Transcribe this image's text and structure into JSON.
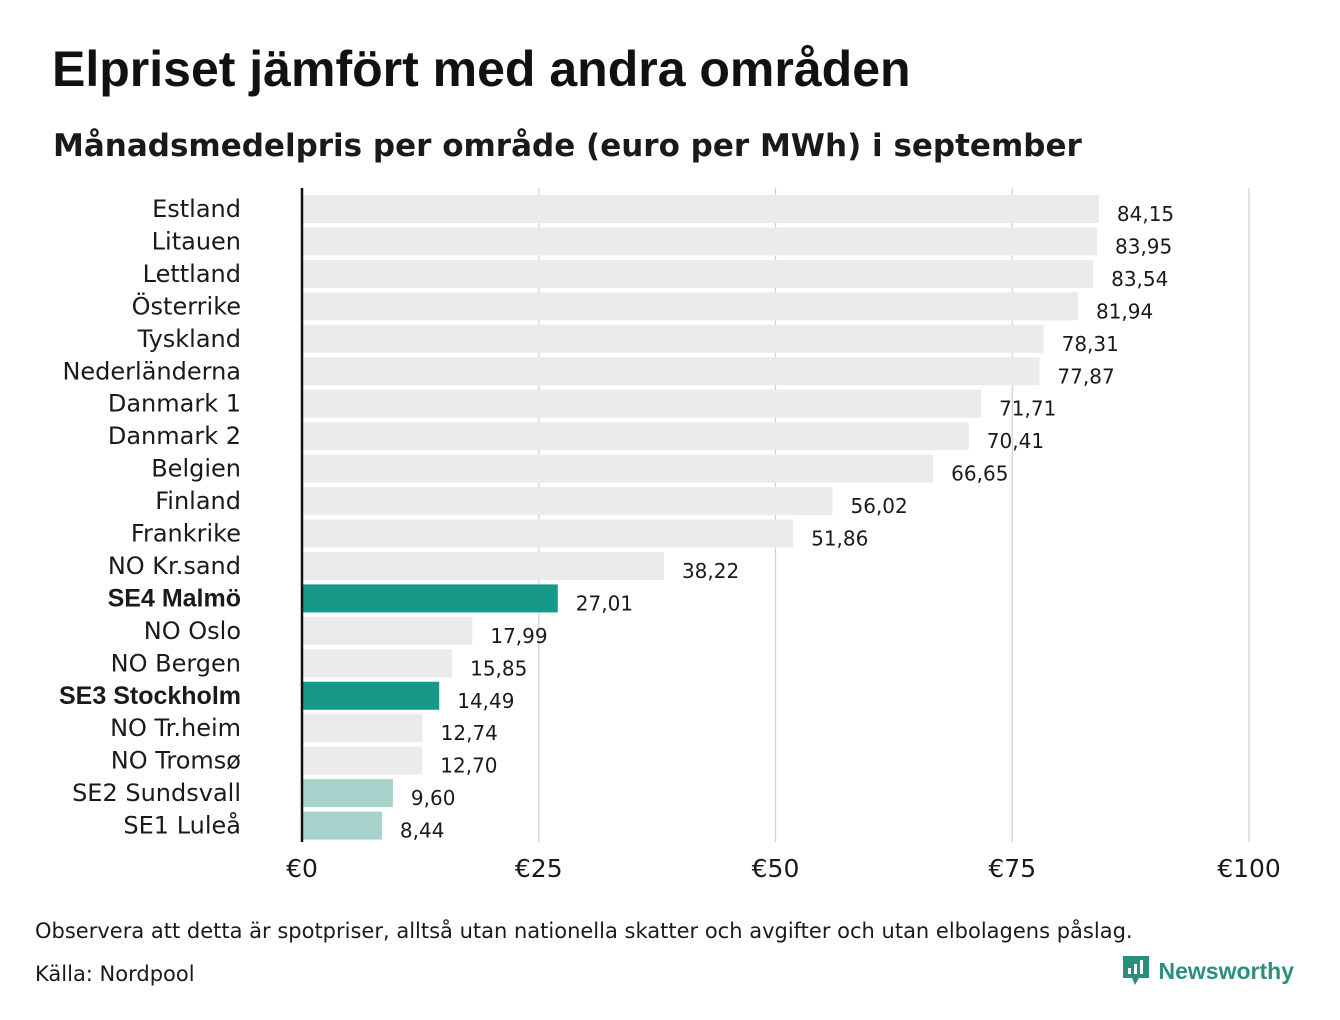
{
  "title": "Elpriset jämfört med andra områden",
  "subtitle": "Månadsmedelpris per område (euro per MWh) i september",
  "colors": {
    "default_bar": "#ebebeb",
    "highlight_bar": "#17998a",
    "light_highlight_bar": "#a8d3cc",
    "axis": "#111111",
    "grid": "#d0d0d0",
    "brand": "#2b8f7e"
  },
  "chart_data": {
    "type": "bar",
    "orientation": "horizontal",
    "categories": [
      "Estland",
      "Litauen",
      "Lettland",
      "Österrike",
      "Tyskland",
      "Nederländerna",
      "Danmark 1",
      "Danmark 2",
      "Belgien",
      "Finland",
      "Frankrike",
      "NO Kr.sand",
      "SE4 Malmö",
      "NO Oslo",
      "NO Bergen",
      "SE3 Stockholm",
      "NO Tr.heim",
      "NO Tromsø",
      "SE2 Sundsvall",
      "SE1 Luleå"
    ],
    "values": [
      84.15,
      83.95,
      83.54,
      81.94,
      78.31,
      77.87,
      71.71,
      70.41,
      66.65,
      56.02,
      51.86,
      38.22,
      27.01,
      17.99,
      15.85,
      14.49,
      12.74,
      12.7,
      9.6,
      8.44
    ],
    "value_labels": [
      "84,15",
      "83,95",
      "83,54",
      "81,94",
      "78,31",
      "77,87",
      "71,71",
      "70,41",
      "66,65",
      "56,02",
      "51,86",
      "38,22",
      "27,01",
      "17,99",
      "15,85",
      "14,49",
      "12,74",
      "12,70",
      "9,60",
      "8,44"
    ],
    "bar_style": [
      "default",
      "default",
      "default",
      "default",
      "default",
      "default",
      "default",
      "default",
      "default",
      "default",
      "default",
      "default",
      "highlight",
      "default",
      "default",
      "highlight",
      "default",
      "default",
      "light_highlight",
      "light_highlight"
    ],
    "bold_labels": [
      "SE4 Malmö",
      "SE3 Stockholm"
    ],
    "xlim": [
      0,
      100
    ],
    "xticks": [
      0,
      25,
      50,
      75,
      100
    ],
    "xtick_labels": [
      "€0",
      "€25",
      "€50",
      "€75",
      "€100"
    ],
    "grid": "vertical",
    "xlabel": "",
    "ylabel": ""
  },
  "footer": {
    "note": "Observera att detta är spotpriser, alltså utan nationella skatter och avgifter och utan elbolagens påslag.",
    "source": "Källa: Nordpool",
    "brand": "Newsworthy"
  }
}
